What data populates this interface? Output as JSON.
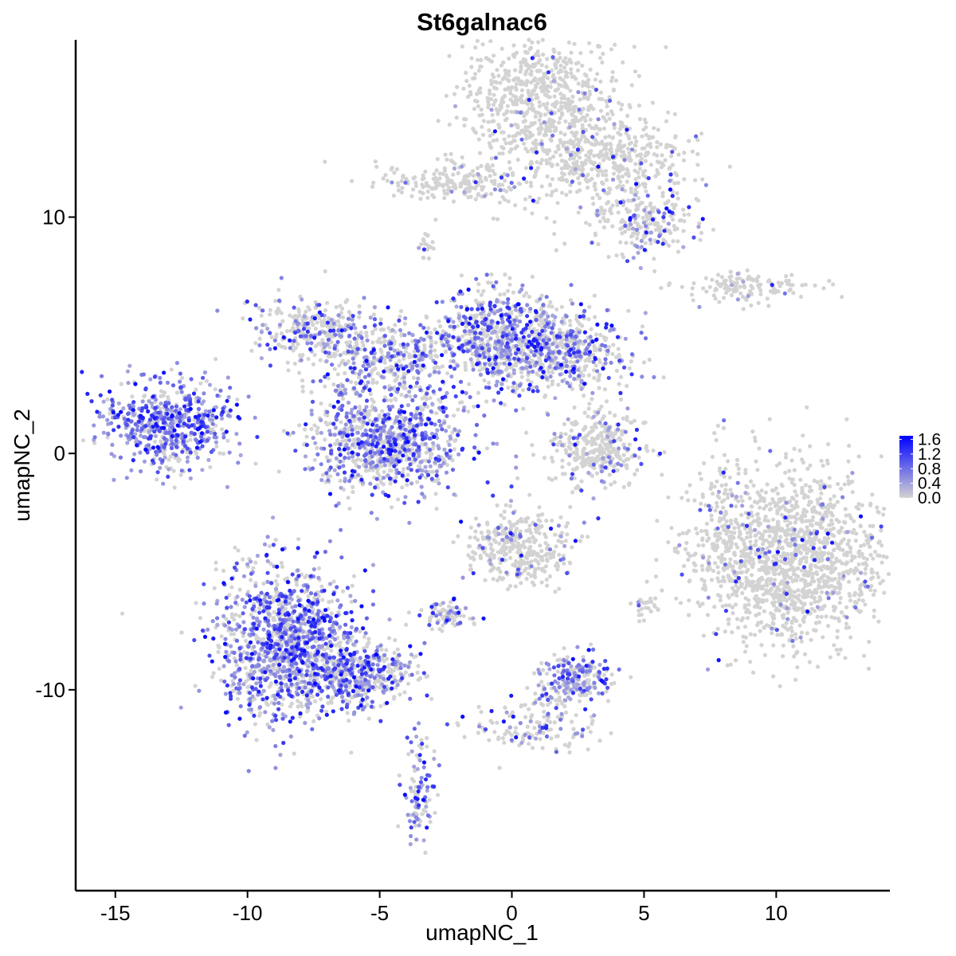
{
  "chart_data": {
    "type": "scatter",
    "title": "St6galnac6",
    "xlabel": "umapNC_1",
    "ylabel": "umapNC_2",
    "xlim": [
      -16.5,
      14.3
    ],
    "ylim": [
      -18.5,
      17.5
    ],
    "x_ticks": [
      -15,
      -10,
      -5,
      0,
      5,
      10
    ],
    "x_tick_labels": [
      "-15",
      "-10",
      "-5",
      "0",
      "5",
      "10"
    ],
    "y_ticks": [
      -10,
      0,
      10
    ],
    "y_tick_labels": [
      "-10",
      "0",
      "10"
    ],
    "grid": false,
    "color_scale": {
      "low_color": "#d3d3d3",
      "high_color": "#0000ff",
      "min": 0.0,
      "max": 1.7,
      "ticks": [
        0.0,
        0.4,
        0.8,
        1.2,
        1.6
      ],
      "tick_labels": [
        "0.0",
        "0.4",
        "0.8",
        "1.2",
        "1.6"
      ],
      "legend_position": "right"
    },
    "clusters": [
      {
        "cx": 1.0,
        "cy": 15.0,
        "sx": 1.5,
        "sy": 1.5,
        "n": 700,
        "pexp": 0.03
      },
      {
        "cx": 3.5,
        "cy": 12.5,
        "sx": 1.6,
        "sy": 0.9,
        "n": 450,
        "pexp": 0.07
      },
      {
        "cx": 5.0,
        "cy": 9.8,
        "sx": 1.0,
        "sy": 0.8,
        "n": 230,
        "pexp": 0.18
      },
      {
        "cx": -2.0,
        "cy": 11.5,
        "sx": 1.5,
        "sy": 0.4,
        "n": 200,
        "pexp": 0.06
      },
      {
        "cx": -3.2,
        "cy": 8.8,
        "sx": 0.2,
        "sy": 0.4,
        "n": 20,
        "pexp": 0.1
      },
      {
        "cx": 9.0,
        "cy": 7.0,
        "sx": 1.2,
        "sy": 0.3,
        "n": 130,
        "pexp": 0.05
      },
      {
        "cx": -7.5,
        "cy": 5.2,
        "sx": 1.2,
        "sy": 0.7,
        "n": 300,
        "pexp": 0.35
      },
      {
        "cx": -4.5,
        "cy": 4.0,
        "sx": 1.5,
        "sy": 0.9,
        "n": 400,
        "pexp": 0.4
      },
      {
        "cx": -0.5,
        "cy": 5.0,
        "sx": 1.1,
        "sy": 1.0,
        "n": 600,
        "pexp": 0.45
      },
      {
        "cx": 1.8,
        "cy": 4.3,
        "sx": 1.3,
        "sy": 0.8,
        "n": 500,
        "pexp": 0.42
      },
      {
        "cx": -4.8,
        "cy": 0.5,
        "sx": 1.5,
        "sy": 1.1,
        "n": 900,
        "pexp": 0.55
      },
      {
        "cx": -13.0,
        "cy": 1.2,
        "sx": 1.2,
        "sy": 0.9,
        "n": 600,
        "pexp": 0.75
      },
      {
        "cx": 3.2,
        "cy": 0.3,
        "sx": 0.9,
        "sy": 0.9,
        "n": 350,
        "pexp": 0.12
      },
      {
        "cx": 10.5,
        "cy": -4.5,
        "sx": 1.8,
        "sy": 1.8,
        "n": 1500,
        "pexp": 0.05
      },
      {
        "cx": -8.5,
        "cy": -8.0,
        "sx": 1.3,
        "sy": 1.6,
        "n": 1300,
        "pexp": 0.6
      },
      {
        "cx": -5.8,
        "cy": -9.3,
        "sx": 1.0,
        "sy": 0.6,
        "n": 400,
        "pexp": 0.45
      },
      {
        "cx": 0.2,
        "cy": -4.0,
        "sx": 1.0,
        "sy": 0.8,
        "n": 350,
        "pexp": 0.12
      },
      {
        "cx": -2.5,
        "cy": -6.9,
        "sx": 0.5,
        "sy": 0.3,
        "n": 80,
        "pexp": 0.3
      },
      {
        "cx": 2.3,
        "cy": -9.5,
        "sx": 0.7,
        "sy": 0.5,
        "n": 220,
        "pexp": 0.55
      },
      {
        "cx": 0.8,
        "cy": -11.5,
        "sx": 1.2,
        "sy": 0.6,
        "n": 150,
        "pexp": 0.25
      },
      {
        "cx": -3.5,
        "cy": -14.4,
        "sx": 0.3,
        "sy": 1.2,
        "n": 100,
        "pexp": 0.6
      },
      {
        "cx": 8.0,
        "cy": -2.0,
        "sx": 0.3,
        "sy": 1.5,
        "n": 60,
        "pexp": 0.15
      },
      {
        "cx": 5.0,
        "cy": -6.5,
        "sx": 0.3,
        "sy": 0.3,
        "n": 25,
        "pexp": 0.05
      }
    ]
  }
}
